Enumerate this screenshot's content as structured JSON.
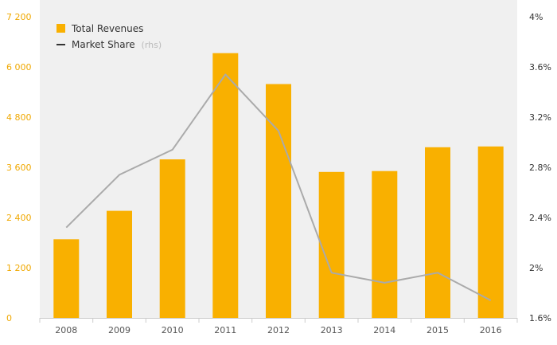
{
  "chart_data": {
    "type": "bar",
    "categories": [
      "2008",
      "2009",
      "2010",
      "2011",
      "2012",
      "2013",
      "2014",
      "2015",
      "2016"
    ],
    "series": [
      {
        "name": "Total Revenues",
        "type": "bar",
        "axis": "left",
        "values": [
          1880,
          2560,
          3790,
          6330,
          5590,
          3490,
          3510,
          4080,
          4100
        ]
      },
      {
        "name": "Market Share",
        "type": "line",
        "axis": "right",
        "values": [
          2.32,
          2.74,
          2.94,
          3.54,
          3.09,
          1.96,
          1.88,
          1.96,
          1.74
        ]
      }
    ],
    "legend": [
      {
        "label": "Total Revenues",
        "suffix": ""
      },
      {
        "label": "Market Share",
        "suffix": "(rhs)"
      }
    ],
    "legend_position": "top-left",
    "ylim": [
      0,
      7200
    ],
    "y2lim": [
      1.6,
      4.0
    ],
    "y_ticks": [
      "0",
      "1 200",
      "2 400",
      "3 600",
      "4 800",
      "6 000",
      "7 200"
    ],
    "y2_ticks": [
      "1.6%",
      "2%",
      "2.4%",
      "2.8%",
      "3.2%",
      "3.6%",
      "4%"
    ],
    "grid": false,
    "colors": {
      "bar": "#f9b000",
      "line": "#aaaaaa",
      "left_axis_text": "#f0a800",
      "right_axis_text": "#333333",
      "x_axis_text": "#555555",
      "legend_text": "#333333",
      "legend_suffix": "#bbbbbb",
      "background": "#f0f0f0"
    }
  }
}
